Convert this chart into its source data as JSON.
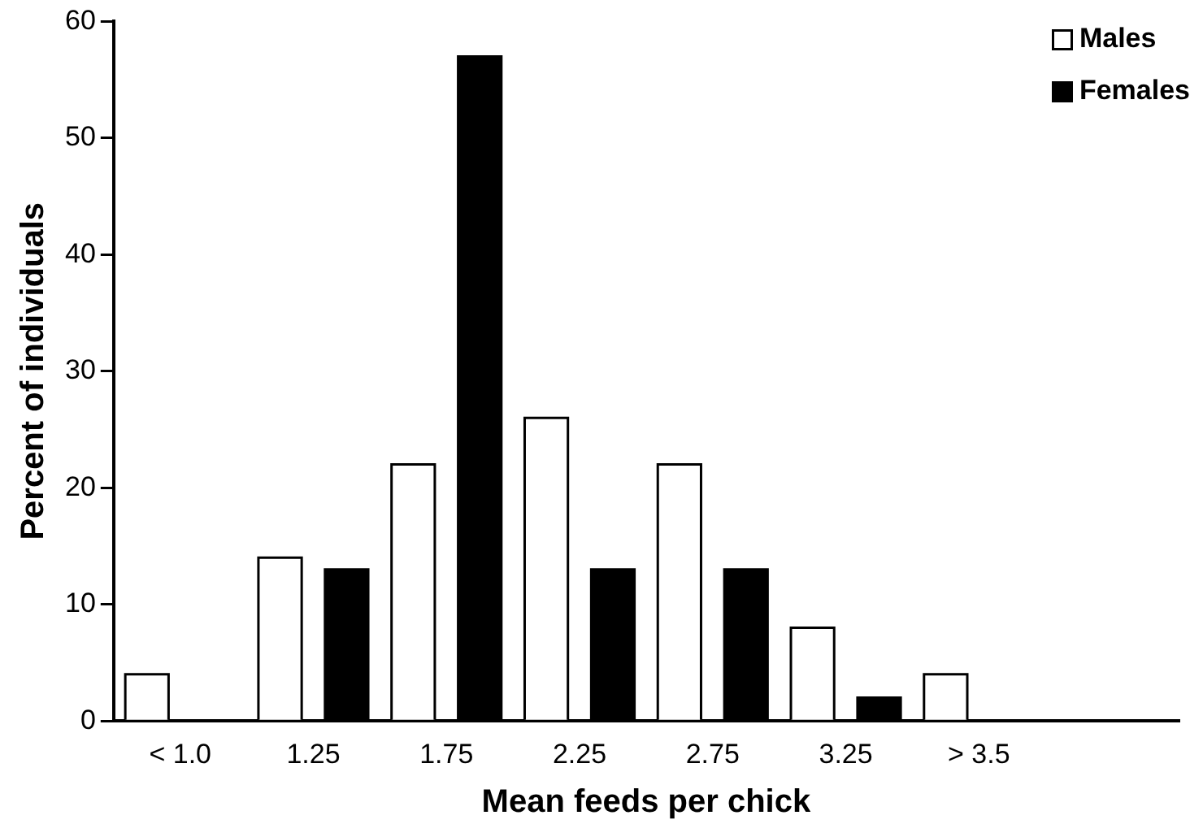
{
  "chart_data": {
    "type": "bar",
    "xlabel": "Mean feeds per chick",
    "ylabel": "Percent of individuals",
    "categories": [
      "< 1.0",
      "1.25",
      "1.75",
      "2.25",
      "2.75",
      "3.25",
      "> 3.5",
      null
    ],
    "series": [
      {
        "name": "Males",
        "color": "#ffffff",
        "values": [
          4,
          14,
          22,
          26,
          22,
          8,
          4,
          null
        ]
      },
      {
        "name": "Females",
        "color": "#000000",
        "values": [
          0,
          13,
          57,
          13,
          13,
          2,
          0,
          null
        ]
      }
    ],
    "ylim": [
      0,
      60
    ],
    "yticks": [
      0,
      10,
      20,
      30,
      40,
      50,
      60
    ],
    "grid": false,
    "legend": "top right"
  }
}
